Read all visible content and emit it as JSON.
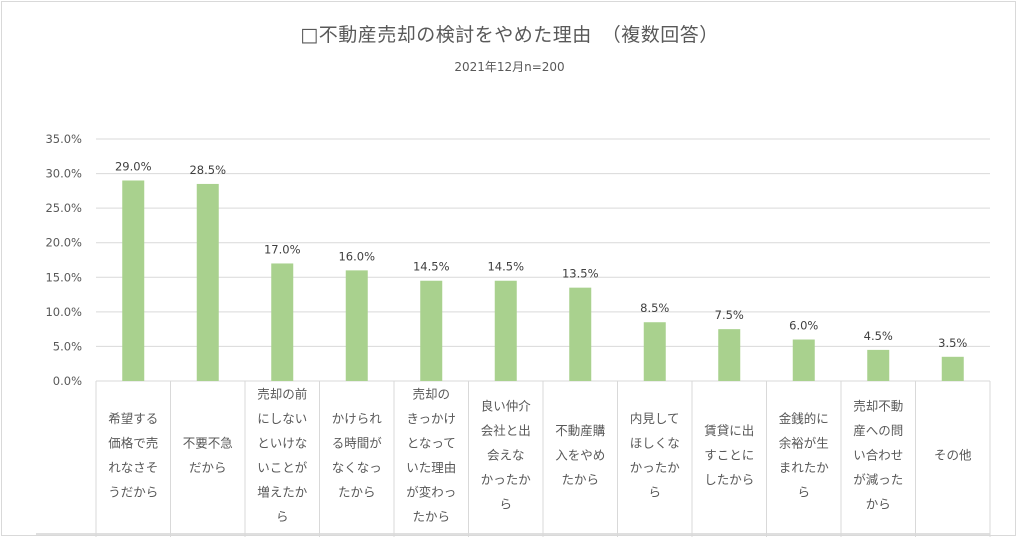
{
  "chart_data": {
    "type": "bar",
    "title": "□不動産売却の検討をやめた理由　（複数回答）",
    "subtitle": "2021年12月n=200",
    "xlabel": "",
    "ylabel": "",
    "ylim": [
      0,
      35
    ],
    "grid": true,
    "legend": "none",
    "bar_color": "#a9d18e",
    "y_ticks": [
      "0.0%",
      "5.0%",
      "10.0%",
      "15.0%",
      "20.0%",
      "25.0%",
      "30.0%",
      "35.0%"
    ],
    "categories": [
      [
        "希望する",
        "価格で売",
        "れなさそ",
        "うだから"
      ],
      [
        "不要不急",
        "だから"
      ],
      [
        "売却の前",
        "にしない",
        "といけな",
        "いことが",
        "増えたか",
        "ら"
      ],
      [
        "かけられ",
        "る時間が",
        "なくなっ",
        "たから"
      ],
      [
        "売却の",
        "きっかけ",
        "となって",
        "いた理由",
        "が変わっ",
        "たから"
      ],
      [
        "良い仲介",
        "会社と出",
        "会えな",
        "かったか",
        "ら"
      ],
      [
        "不動産購",
        "入をやめ",
        "たから"
      ],
      [
        "内見して",
        "ほしくな",
        "かったか",
        "ら"
      ],
      [
        "賃貸に出",
        "すことに",
        "したから"
      ],
      [
        "金銭的に",
        "余裕が生",
        "まれたか",
        "ら"
      ],
      [
        "売却不動",
        "産への問",
        "い合わせ",
        "が減った",
        "から"
      ],
      [
        "その他"
      ]
    ],
    "values": [
      29.0,
      28.5,
      17.0,
      16.0,
      14.5,
      14.5,
      13.5,
      8.5,
      7.5,
      6.0,
      4.5,
      3.5
    ],
    "value_labels": [
      "29.0%",
      "28.5%",
      "17.0%",
      "16.0%",
      "14.5%",
      "14.5%",
      "13.5%",
      "8.5%",
      "7.5%",
      "6.0%",
      "4.5%",
      "3.5%"
    ]
  }
}
